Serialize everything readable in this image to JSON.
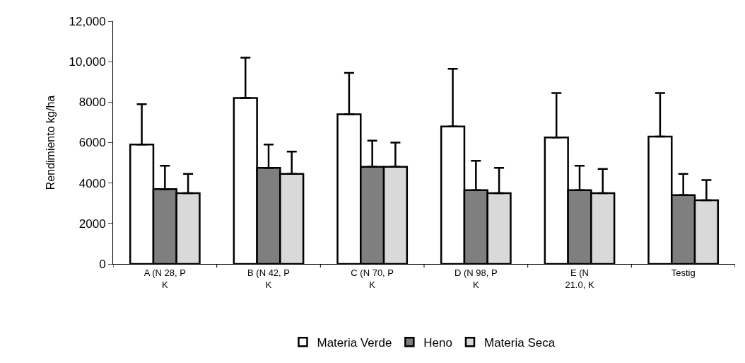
{
  "chart_data": {
    "type": "bar",
    "ylabel": "Rendimiento kg/ha",
    "categories": [
      "A (N 28, P\nK",
      "B (N 42, P\nK",
      "C (N 70, P\nK",
      "D (N 98, P\nK",
      "E (N\n21.0, K",
      "Testig"
    ],
    "series": [
      {
        "name": "Materia Verde",
        "color": "#ffffff",
        "values": [
          5900,
          8200,
          7400,
          6800,
          6250,
          6300
        ],
        "errors": [
          [
            5900,
            7900
          ],
          [
            8200,
            10200
          ],
          [
            7400,
            9450
          ],
          [
            6800,
            9650
          ],
          [
            6250,
            8450
          ],
          [
            6300,
            8450
          ]
        ]
      },
      {
        "name": "Heno",
        "color": "#7f7f7f",
        "values": [
          3700,
          4750,
          4800,
          3650,
          3650,
          3400
        ],
        "errors": [
          [
            3700,
            4850
          ],
          [
            4750,
            5900
          ],
          [
            4800,
            6100
          ],
          [
            3650,
            5100
          ],
          [
            3650,
            4850
          ],
          [
            3400,
            4450
          ]
        ]
      },
      {
        "name": "Materia Seca",
        "color": "#d9d9d9",
        "values": [
          3500,
          4450,
          4800,
          3500,
          3500,
          3150
        ],
        "errors": [
          [
            3500,
            4450
          ],
          [
            4450,
            5550
          ],
          [
            4800,
            6000
          ],
          [
            3500,
            4750
          ],
          [
            3500,
            4700
          ],
          [
            3150,
            4150
          ]
        ]
      }
    ],
    "ylim": [
      0,
      12000
    ],
    "yticks": [
      0,
      2000,
      4000,
      6000,
      8000,
      {
        "value": 10000,
        "label": "10,000"
      },
      {
        "value": 12000,
        "label": "12,000"
      }
    ],
    "legend": "bottom"
  }
}
